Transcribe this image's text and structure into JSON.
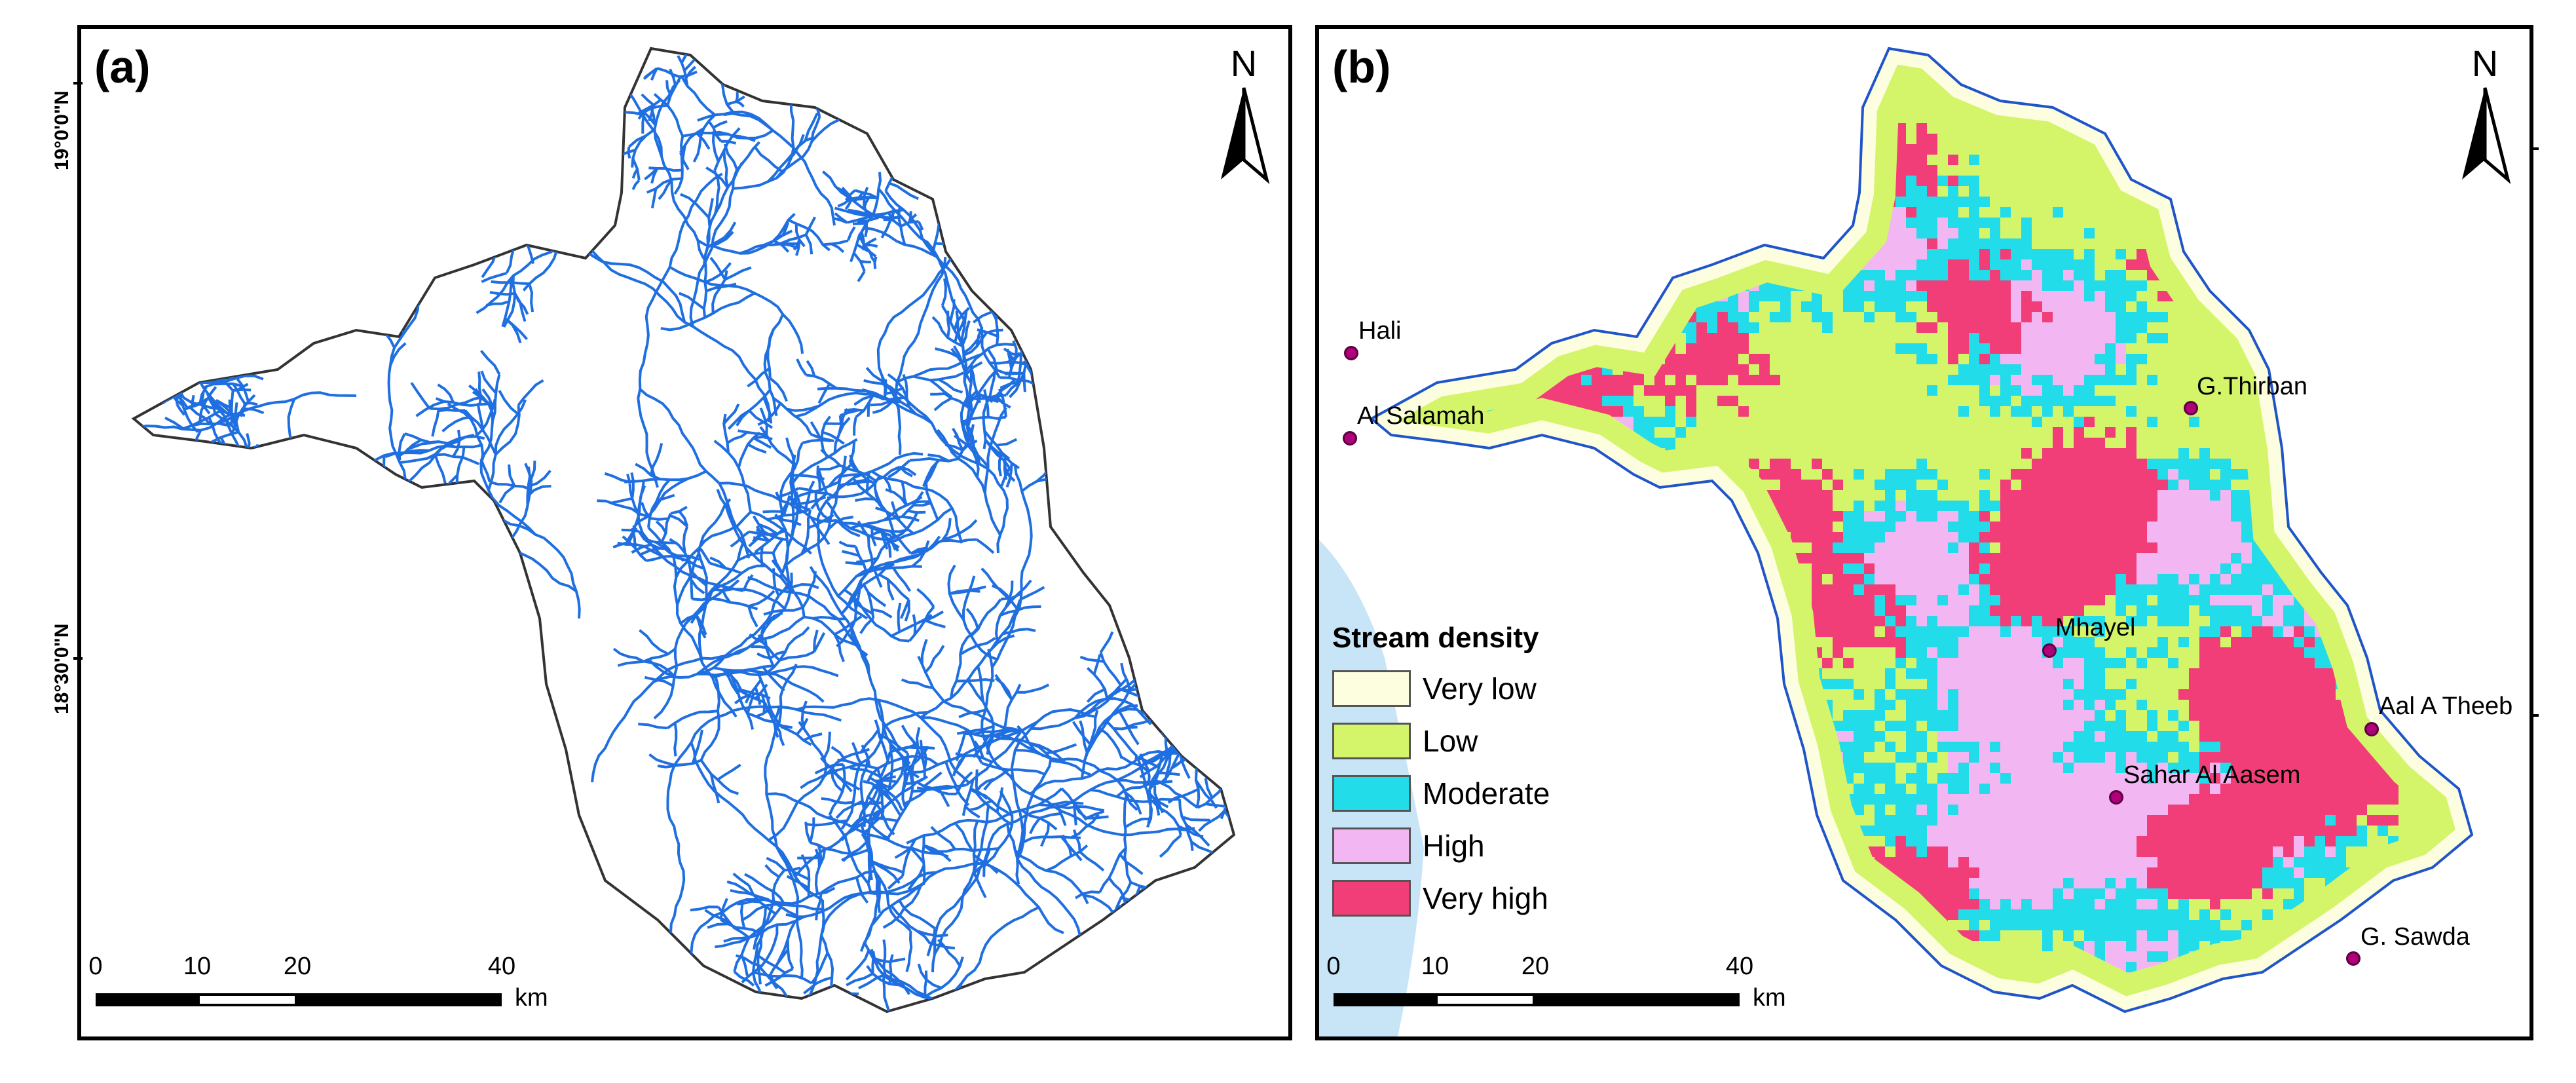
{
  "panel_a": {
    "label": "(a)",
    "lat_labels": [
      "19°0'0\"N",
      "18°30'0\"N"
    ],
    "north": "N",
    "scale": {
      "ticks": [
        "0",
        "10",
        "20",
        "40"
      ],
      "unit": "km"
    },
    "colors": {
      "streams": "#1f6fe0",
      "boundary": "#333333"
    }
  },
  "panel_b": {
    "label": "(b)",
    "north": "N",
    "scale": {
      "ticks": [
        "0",
        "10",
        "20",
        "40"
      ],
      "unit": "km"
    },
    "places": [
      {
        "name": "Hali"
      },
      {
        "name": "Al Salamah"
      },
      {
        "name": "G.Thirban"
      },
      {
        "name": "Mhayel"
      },
      {
        "name": "Aal A Theeb"
      },
      {
        "name": "Sahar Al Aasem"
      },
      {
        "name": "G. Sawda"
      }
    ],
    "legend": {
      "title": "Stream density",
      "items": [
        {
          "label": "Very low",
          "color": "#fdfde0"
        },
        {
          "label": "Low",
          "color": "#d4f46a"
        },
        {
          "label": "Moderate",
          "color": "#22dcea"
        },
        {
          "label": "High",
          "color": "#f2b6f2"
        },
        {
          "label": "Very high",
          "color": "#f23e78"
        }
      ]
    },
    "colors": {
      "sea": "#c8e4f7",
      "boundary": "#1f55c8"
    }
  }
}
